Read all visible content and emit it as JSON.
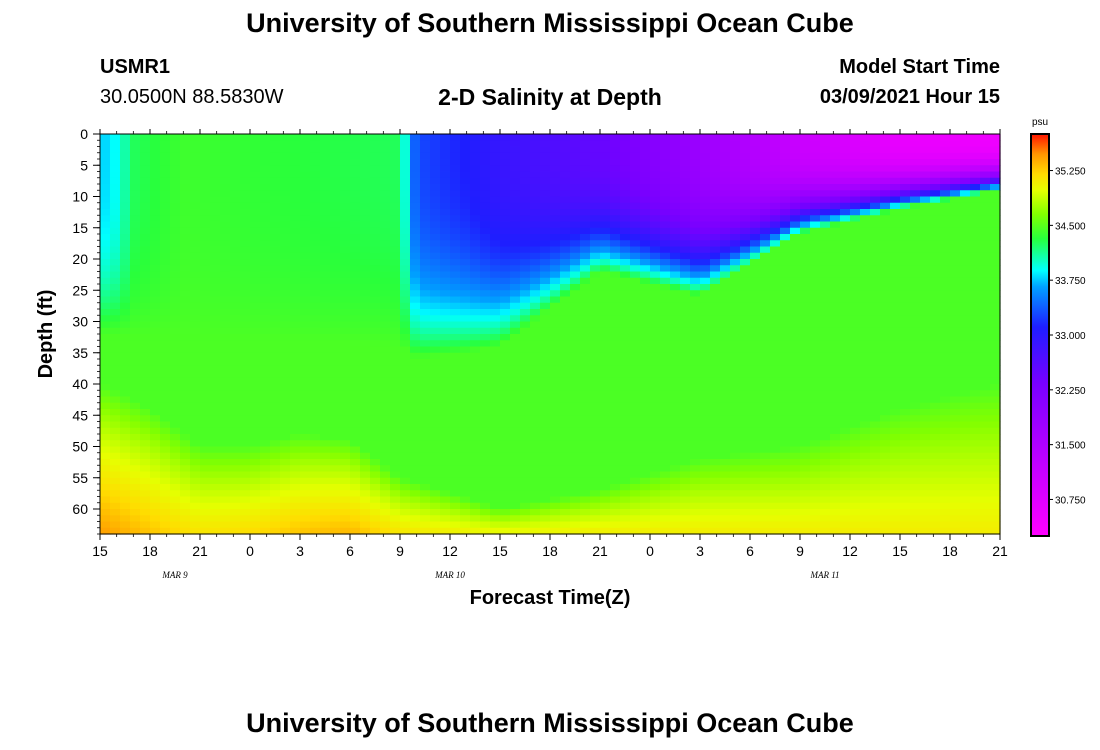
{
  "header": {
    "title": "University of Southern Mississippi Ocean Cube",
    "station_id": "USMR1",
    "station_location": "30.0500N 88.5830W",
    "chart_title": "2-D Salinity at Depth",
    "start_label": "Model Start Time",
    "start_value": "03/09/2021 Hour 15"
  },
  "footer": {
    "title": "University of Southern Mississippi Ocean Cube"
  },
  "chart_data": {
    "type": "heatmap",
    "title": "2-D Salinity at Depth",
    "xlabel": "Forecast Time(Z)",
    "ylabel": "Depth (ft)",
    "x_tick_labels": [
      "15",
      "18",
      "21",
      "0",
      "3",
      "6",
      "9",
      "12",
      "15",
      "18",
      "21",
      "0",
      "3",
      "6",
      "9",
      "12",
      "15",
      "18",
      "21"
    ],
    "x_range_hours": [
      0,
      54
    ],
    "day_labels": [
      {
        "label": "MAR  9",
        "hour": 4.5
      },
      {
        "label": "MAR  10",
        "hour": 21
      },
      {
        "label": "MAR  11",
        "hour": 43.5
      }
    ],
    "y_tick_labels": [
      "0",
      "5",
      "10",
      "15",
      "20",
      "25",
      "30",
      "35",
      "40",
      "45",
      "50",
      "55",
      "60"
    ],
    "ylim": [
      0,
      64
    ],
    "colorbar": {
      "unit": "psu",
      "range": [
        30.25,
        35.75
      ],
      "tick_labels": [
        "35.250",
        "34.500",
        "33.750",
        "33.000",
        "32.250",
        "31.500",
        "30.750"
      ],
      "tick_values": [
        35.25,
        34.5,
        33.75,
        33.0,
        32.25,
        31.5,
        30.75
      ]
    },
    "deep_layer": [
      {
        "hour": 0,
        "depth": 40,
        "top_psu": 34.45,
        "bottom_psu": 35.45
      },
      {
        "hour": 3,
        "depth": 44,
        "top_psu": 34.45,
        "bottom_psu": 35.3
      },
      {
        "hour": 6,
        "depth": 50,
        "top_psu": 34.45,
        "bottom_psu": 35.15
      },
      {
        "hour": 9,
        "depth": 50,
        "top_psu": 34.45,
        "bottom_psu": 35.2
      },
      {
        "hour": 12,
        "depth": 48,
        "top_psu": 34.45,
        "bottom_psu": 35.3
      },
      {
        "hour": 15,
        "depth": 49,
        "top_psu": 34.45,
        "bottom_psu": 35.35
      },
      {
        "hour": 18,
        "depth": 55,
        "top_psu": 34.45,
        "bottom_psu": 35.15
      },
      {
        "hour": 24,
        "depth": 60,
        "top_psu": 34.45,
        "bottom_psu": 35.05
      },
      {
        "hour": 30,
        "depth": 57,
        "top_psu": 34.45,
        "bottom_psu": 35.1
      },
      {
        "hour": 36,
        "depth": 52,
        "top_psu": 34.45,
        "bottom_psu": 35.1
      },
      {
        "hour": 42,
        "depth": 50,
        "top_psu": 34.45,
        "bottom_psu": 35.1
      },
      {
        "hour": 48,
        "depth": 44,
        "top_psu": 34.45,
        "bottom_psu": 35.1
      },
      {
        "hour": 54,
        "depth": 40,
        "top_psu": 34.45,
        "bottom_psu": 35.1
      }
    ],
    "surface_layer": [
      {
        "hour": 0,
        "psu": 33.75,
        "depth": 32
      },
      {
        "hour": 1,
        "psu": 33.9,
        "depth": 32
      },
      {
        "hour": 2,
        "psu": 34.25,
        "depth": 32
      },
      {
        "hour": 5,
        "psu": 34.4,
        "depth": 32
      },
      {
        "hour": 18,
        "psu": 34.25,
        "depth": 34
      },
      {
        "hour": 19,
        "psu": 33.3,
        "depth": 36
      },
      {
        "hour": 22,
        "psu": 33.1,
        "depth": 35
      },
      {
        "hour": 24,
        "psu": 32.9,
        "depth": 34
      },
      {
        "hour": 30,
        "psu": 32.5,
        "depth": 22
      },
      {
        "hour": 36,
        "psu": 31.8,
        "depth": 26
      },
      {
        "hour": 42,
        "psu": 31.1,
        "depth": 16
      },
      {
        "hour": 48,
        "psu": 30.6,
        "depth": 12
      },
      {
        "hour": 54,
        "psu": 30.5,
        "depth": 9
      }
    ]
  }
}
